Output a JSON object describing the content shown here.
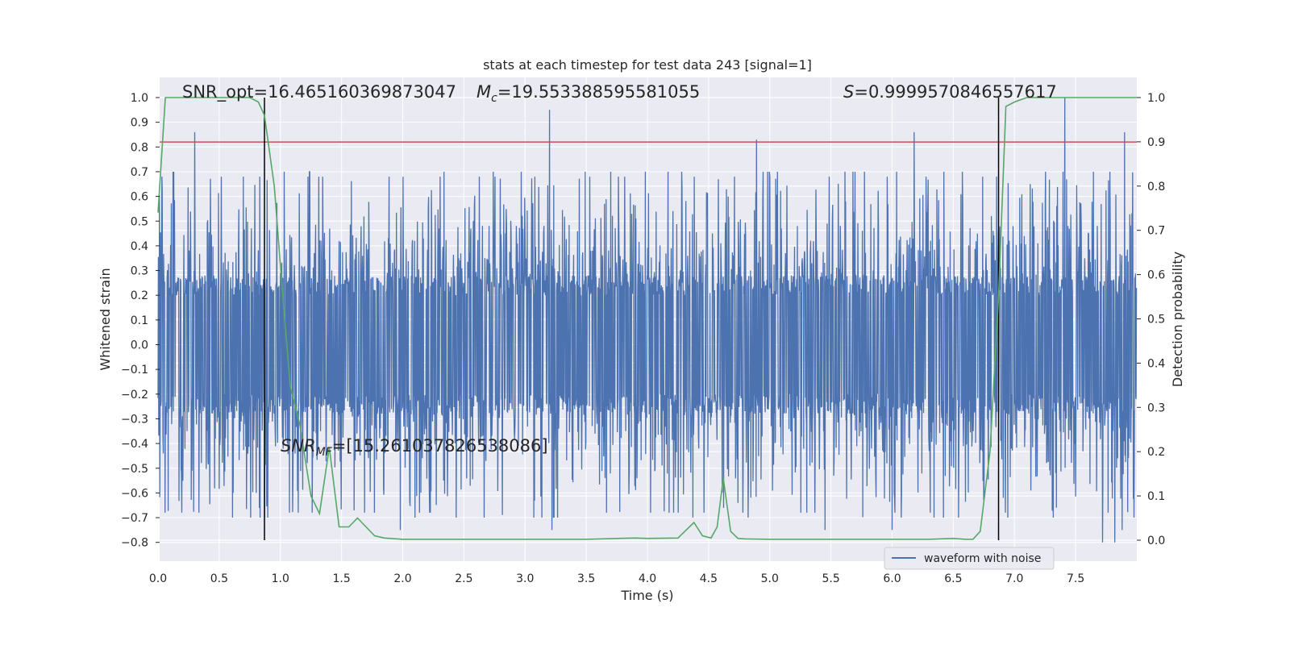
{
  "chart_data": {
    "type": "line",
    "title": "stats at each timestep for test data 243 [signal=1]",
    "xlabel": "Time (s)",
    "ylabel": "Whitened strain",
    "y2label": "Detection probability",
    "xlim": [
      0.0,
      8.0
    ],
    "ylim": [
      -0.89,
      1.0
    ],
    "y2lim": [
      -0.05,
      1.03
    ],
    "xticks": [
      "0.0",
      "0.5",
      "1.0",
      "1.5",
      "2.0",
      "2.5",
      "3.0",
      "3.5",
      "4.0",
      "4.5",
      "5.0",
      "5.5",
      "6.0",
      "6.5",
      "7.0",
      "7.5"
    ],
    "yticks": [
      "1.0",
      "0.9",
      "0.8",
      "0.7",
      "0.6",
      "0.5",
      "0.4",
      "0.3",
      "0.2",
      "0.1",
      "0.0",
      "−0.1",
      "−0.2",
      "−0.3",
      "−0.4",
      "−0.5",
      "−0.6",
      "−0.7",
      "−0.8"
    ],
    "y2ticks": [
      "1.0",
      "0.9",
      "0.8",
      "0.7",
      "0.6",
      "0.5",
      "0.4",
      "0.3",
      "0.2",
      "0.1",
      "0.0"
    ],
    "grid": true,
    "annotations": {
      "snr_opt": "SNR_opt=16.465160369873047",
      "mc_symbol": "M",
      "mc_sub": "c",
      "mc_value": "=19.553388595581055",
      "s_symbol": "S",
      "s_value": "=0.9999570846557617",
      "snr_mf_symbol": "SNR",
      "snr_mf_sub": "MF",
      "snr_mf_value": "=[15.261037826538086]"
    },
    "legend": {
      "position": "bottom-right",
      "label": "waveform with noise"
    },
    "threshold": {
      "value": 0.82,
      "axis": "y",
      "color": "#c44e52"
    },
    "vlines": [
      0.87,
      6.87
    ],
    "series": [
      {
        "name": "waveform with noise",
        "axis": "y",
        "color": "#4c72b0",
        "note": "dense whitened strain noise, values within approx -0.8 to 0.95",
        "peaks": [
          {
            "x": 0.3,
            "y": 0.86
          },
          {
            "x": 3.2,
            "y": 0.95
          },
          {
            "x": 4.89,
            "y": 0.83
          },
          {
            "x": 6.18,
            "y": 0.86
          },
          {
            "x": 7.41,
            "y": 1.0
          },
          {
            "x": 7.9,
            "y": 0.86
          },
          {
            "x": 0.87,
            "y": -0.7
          },
          {
            "x": 1.98,
            "y": -0.75
          },
          {
            "x": 3.22,
            "y": -0.75
          },
          {
            "x": 5.45,
            "y": -0.75
          },
          {
            "x": 6.0,
            "y": -0.75
          },
          {
            "x": 7.72,
            "y": -0.8
          },
          {
            "x": 7.82,
            "y": -0.8
          },
          {
            "x": 7.88,
            "y": -0.75
          }
        ]
      },
      {
        "name": "detection probability",
        "axis": "y2",
        "color": "#55a868",
        "x": [
          0.0,
          0.06,
          0.2,
          0.4,
          0.6,
          0.75,
          0.82,
          0.87,
          0.95,
          1.02,
          1.08,
          1.16,
          1.25,
          1.32,
          1.4,
          1.48,
          1.56,
          1.63,
          1.7,
          1.77,
          1.85,
          2.0,
          2.2,
          2.5,
          3.0,
          3.5,
          3.9,
          4.0,
          4.25,
          4.38,
          4.45,
          4.52,
          4.57,
          4.62,
          4.68,
          4.74,
          4.8,
          5.0,
          5.3,
          5.6,
          6.0,
          6.3,
          6.5,
          6.6,
          6.66,
          6.72,
          6.8,
          6.87,
          6.93,
          7.0,
          7.1,
          7.2,
          7.3,
          7.4,
          8.0
        ],
        "y": [
          0.74,
          1.0,
          1.0,
          1.0,
          1.0,
          1.0,
          0.99,
          0.96,
          0.8,
          0.55,
          0.35,
          0.26,
          0.1,
          0.06,
          0.21,
          0.03,
          0.03,
          0.05,
          0.03,
          0.01,
          0.005,
          0.002,
          0.002,
          0.002,
          0.002,
          0.002,
          0.005,
          0.004,
          0.005,
          0.04,
          0.01,
          0.005,
          0.03,
          0.14,
          0.02,
          0.004,
          0.003,
          0.002,
          0.002,
          0.002,
          0.002,
          0.002,
          0.004,
          0.002,
          0.002,
          0.02,
          0.2,
          0.55,
          0.98,
          0.99,
          1.0,
          1.0,
          1.0,
          1.0,
          1.0
        ]
      }
    ]
  }
}
